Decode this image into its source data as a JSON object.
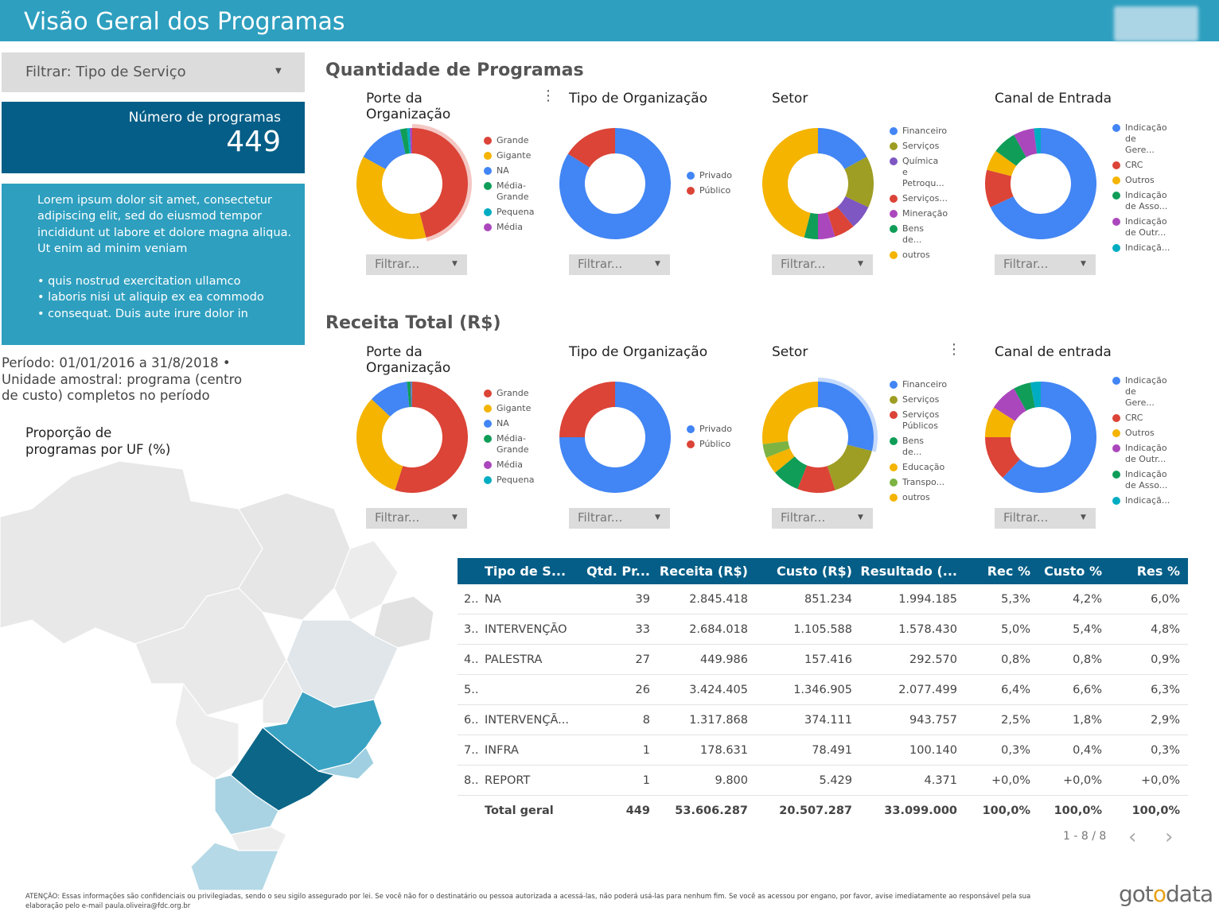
{
  "header": {
    "title": "Visão Geral dos Programas"
  },
  "filter_service": {
    "label": "Filtrar: Tipo de Serviço"
  },
  "kpi": {
    "label": "Número de programas",
    "value": "449"
  },
  "lorem": {
    "paragraph": "Lorem ipsum dolor sit amet, consectetur adipiscing elit, sed do eiusmod tempor incididunt ut labore et dolore magna aliqua. Ut enim ad minim veniam",
    "bullets": [
      "• quis nostrud exercitation ullamco",
      "• laboris nisi ut aliquip ex ea commodo",
      "• consequat. Duis aute irure dolor in"
    ]
  },
  "periodo": "Período: 01/01/2016 a 31/8/2018 • Unidade amostral:  programa (centro de custo) completos no período",
  "map": {
    "title": "Proporção de programas por UF (%)"
  },
  "sections": {
    "quantidade": "Quantidade de Programas",
    "receita": "Receita Total (R$)"
  },
  "filter_button": "Filtrar...",
  "kebab_icon": "⋮",
  "colors": {
    "blue": "#4285f4",
    "red": "#db4437",
    "yellow": "#f4b400",
    "green": "#0f9d58",
    "purple": "#ab47bc",
    "teal": "#00acc1",
    "olive": "#9e9d24",
    "lightgreen": "#7cb342",
    "violet": "#7e57c2",
    "header": "#2e9fbf",
    "dark": "#055e87"
  },
  "donuts_qtd": [
    {
      "title": "Porte da Organização",
      "highlight": 0,
      "slices": [
        {
          "label": "Grande",
          "value": 46,
          "color": "#db4437"
        },
        {
          "label": "Gigante",
          "value": 37,
          "color": "#f4b400"
        },
        {
          "label": "NA",
          "value": 13.5,
          "color": "#4285f4"
        },
        {
          "label": "Média-Grande",
          "value": 2,
          "color": "#0f9d58"
        },
        {
          "label": "Pequena",
          "value": 0.8,
          "color": "#00acc1"
        },
        {
          "label": "Média",
          "value": 0.7,
          "color": "#ab47bc"
        }
      ]
    },
    {
      "title": "Tipo de Organização",
      "highlight": -1,
      "slices": [
        {
          "label": "Privado",
          "value": 84,
          "color": "#4285f4"
        },
        {
          "label": "Público",
          "value": 16,
          "color": "#db4437"
        }
      ]
    },
    {
      "title": "Setor",
      "highlight": -1,
      "slices": [
        {
          "label": "Financeiro",
          "value": 17,
          "color": "#4285f4"
        },
        {
          "label": "Serviços",
          "value": 15,
          "color": "#9e9d24"
        },
        {
          "label": "Química e Petroqu...",
          "value": 7,
          "color": "#7e57c2"
        },
        {
          "label": "Serviços...",
          "value": 6,
          "color": "#db4437"
        },
        {
          "label": "Mineração",
          "value": 5,
          "color": "#ab47bc"
        },
        {
          "label": "Bens de...",
          "value": 4,
          "color": "#0f9d58"
        },
        {
          "label": "outros",
          "value": 46,
          "color": "#f4b400"
        }
      ]
    },
    {
      "title": "Canal de Entrada",
      "highlight": -1,
      "slices": [
        {
          "label": "Indicação de Gere...",
          "value": 68,
          "color": "#4285f4"
        },
        {
          "label": "CRC",
          "value": 11,
          "color": "#db4437"
        },
        {
          "label": "Outros",
          "value": 6,
          "color": "#f4b400"
        },
        {
          "label": "Indicação de Asso...",
          "value": 7,
          "color": "#0f9d58"
        },
        {
          "label": "Indicação de Outr...",
          "value": 6,
          "color": "#ab47bc"
        },
        {
          "label": "Indicaçã...",
          "value": 2,
          "color": "#00acc1"
        }
      ]
    }
  ],
  "donuts_rec": [
    {
      "title": "Porte da Organização",
      "highlight": -1,
      "slices": [
        {
          "label": "Grande",
          "value": 55,
          "color": "#db4437"
        },
        {
          "label": "Gigante",
          "value": 32,
          "color": "#f4b400"
        },
        {
          "label": "NA",
          "value": 11.5,
          "color": "#4285f4"
        },
        {
          "label": "Média-Grande",
          "value": 1,
          "color": "#0f9d58"
        },
        {
          "label": "Média",
          "value": 0.3,
          "color": "#ab47bc"
        },
        {
          "label": "Pequena",
          "value": 0.2,
          "color": "#00acc1"
        }
      ]
    },
    {
      "title": "Tipo de Organização",
      "highlight": -1,
      "slices": [
        {
          "label": "Privado",
          "value": 75,
          "color": "#4285f4"
        },
        {
          "label": "Público",
          "value": 25,
          "color": "#db4437"
        }
      ]
    },
    {
      "title": "Setor",
      "highlight": 0,
      "slices": [
        {
          "label": "Financeiro",
          "value": 29,
          "color": "#4285f4"
        },
        {
          "label": "Serviços",
          "value": 16,
          "color": "#9e9d24"
        },
        {
          "label": "Serviços Públicos",
          "value": 11,
          "color": "#db4437"
        },
        {
          "label": "Bens de...",
          "value": 8,
          "color": "#0f9d58"
        },
        {
          "label": "Educação",
          "value": 5,
          "color": "#f4b400"
        },
        {
          "label": "Transpo...",
          "value": 4,
          "color": "#7cb342"
        },
        {
          "label": "outros",
          "value": 27,
          "color": "#f4b400"
        }
      ]
    },
    {
      "title": "Canal de entrada",
      "highlight": -1,
      "slices": [
        {
          "label": "Indicação de Gere...",
          "value": 62,
          "color": "#4285f4"
        },
        {
          "label": "CRC",
          "value": 13,
          "color": "#db4437"
        },
        {
          "label": "Outros",
          "value": 9,
          "color": "#f4b400"
        },
        {
          "label": "Indicação de Outr...",
          "value": 8,
          "color": "#ab47bc"
        },
        {
          "label": "Indicação de Asso...",
          "value": 5,
          "color": "#0f9d58"
        },
        {
          "label": "Indicaçã...",
          "value": 3,
          "color": "#00acc1"
        }
      ]
    }
  ],
  "table": {
    "headers": [
      "Tipo de S...",
      "Qtd. Pr...",
      "Receita (R$)",
      "Custo (R$)",
      "Resultado (...",
      "Rec %",
      "Custo %",
      "Res %"
    ],
    "rows": [
      [
        "2..",
        "NA",
        "39",
        "2.845.418",
        "851.234",
        "1.994.185",
        "5,3%",
        "4,2%",
        "6,0%"
      ],
      [
        "3..",
        "INTERVENÇÃO",
        "33",
        "2.684.018",
        "1.105.588",
        "1.578.430",
        "5,0%",
        "5,4%",
        "4,8%"
      ],
      [
        "4..",
        "PALESTRA",
        "27",
        "449.986",
        "157.416",
        "292.570",
        "0,8%",
        "0,8%",
        "0,9%"
      ],
      [
        "5..",
        "",
        "26",
        "3.424.405",
        "1.346.905",
        "2.077.499",
        "6,4%",
        "6,6%",
        "6,3%"
      ],
      [
        "6..",
        "INTERVENÇÃ...",
        "8",
        "1.317.868",
        "374.111",
        "943.757",
        "2,5%",
        "1,8%",
        "2,9%"
      ],
      [
        "7..",
        "INFRA",
        "1",
        "178.631",
        "78.491",
        "100.140",
        "0,3%",
        "0,4%",
        "0,3%"
      ],
      [
        "8..",
        "REPORT",
        "1",
        "9.800",
        "5.429",
        "4.371",
        "+0,0%",
        "+0,0%",
        "+0,0%"
      ]
    ],
    "total": [
      "",
      "Total geral",
      "449",
      "53.606.287",
      "20.507.287",
      "33.099.000",
      "100,0%",
      "100,0%",
      "100,0%"
    ]
  },
  "pager": {
    "text": "1 - 8 / 8",
    "prev": "‹",
    "next": "›"
  },
  "footer": "ATENÇÃO: Essas informações são confidenciais ou privilegiadas, sendo o seu sigilo assegurado por lei. Se você não for o destinatário ou pessoa autorizada a acessá-las, não poderá usá-las para nenhum fim. Se você as acessou por engano, por favor, avise imediatamente ao responsável pela sua elaboração pelo e-mail paula.oliveira@fdc.org.br",
  "brand": {
    "part1": "got",
    "part2": "o",
    "part3": "data"
  }
}
